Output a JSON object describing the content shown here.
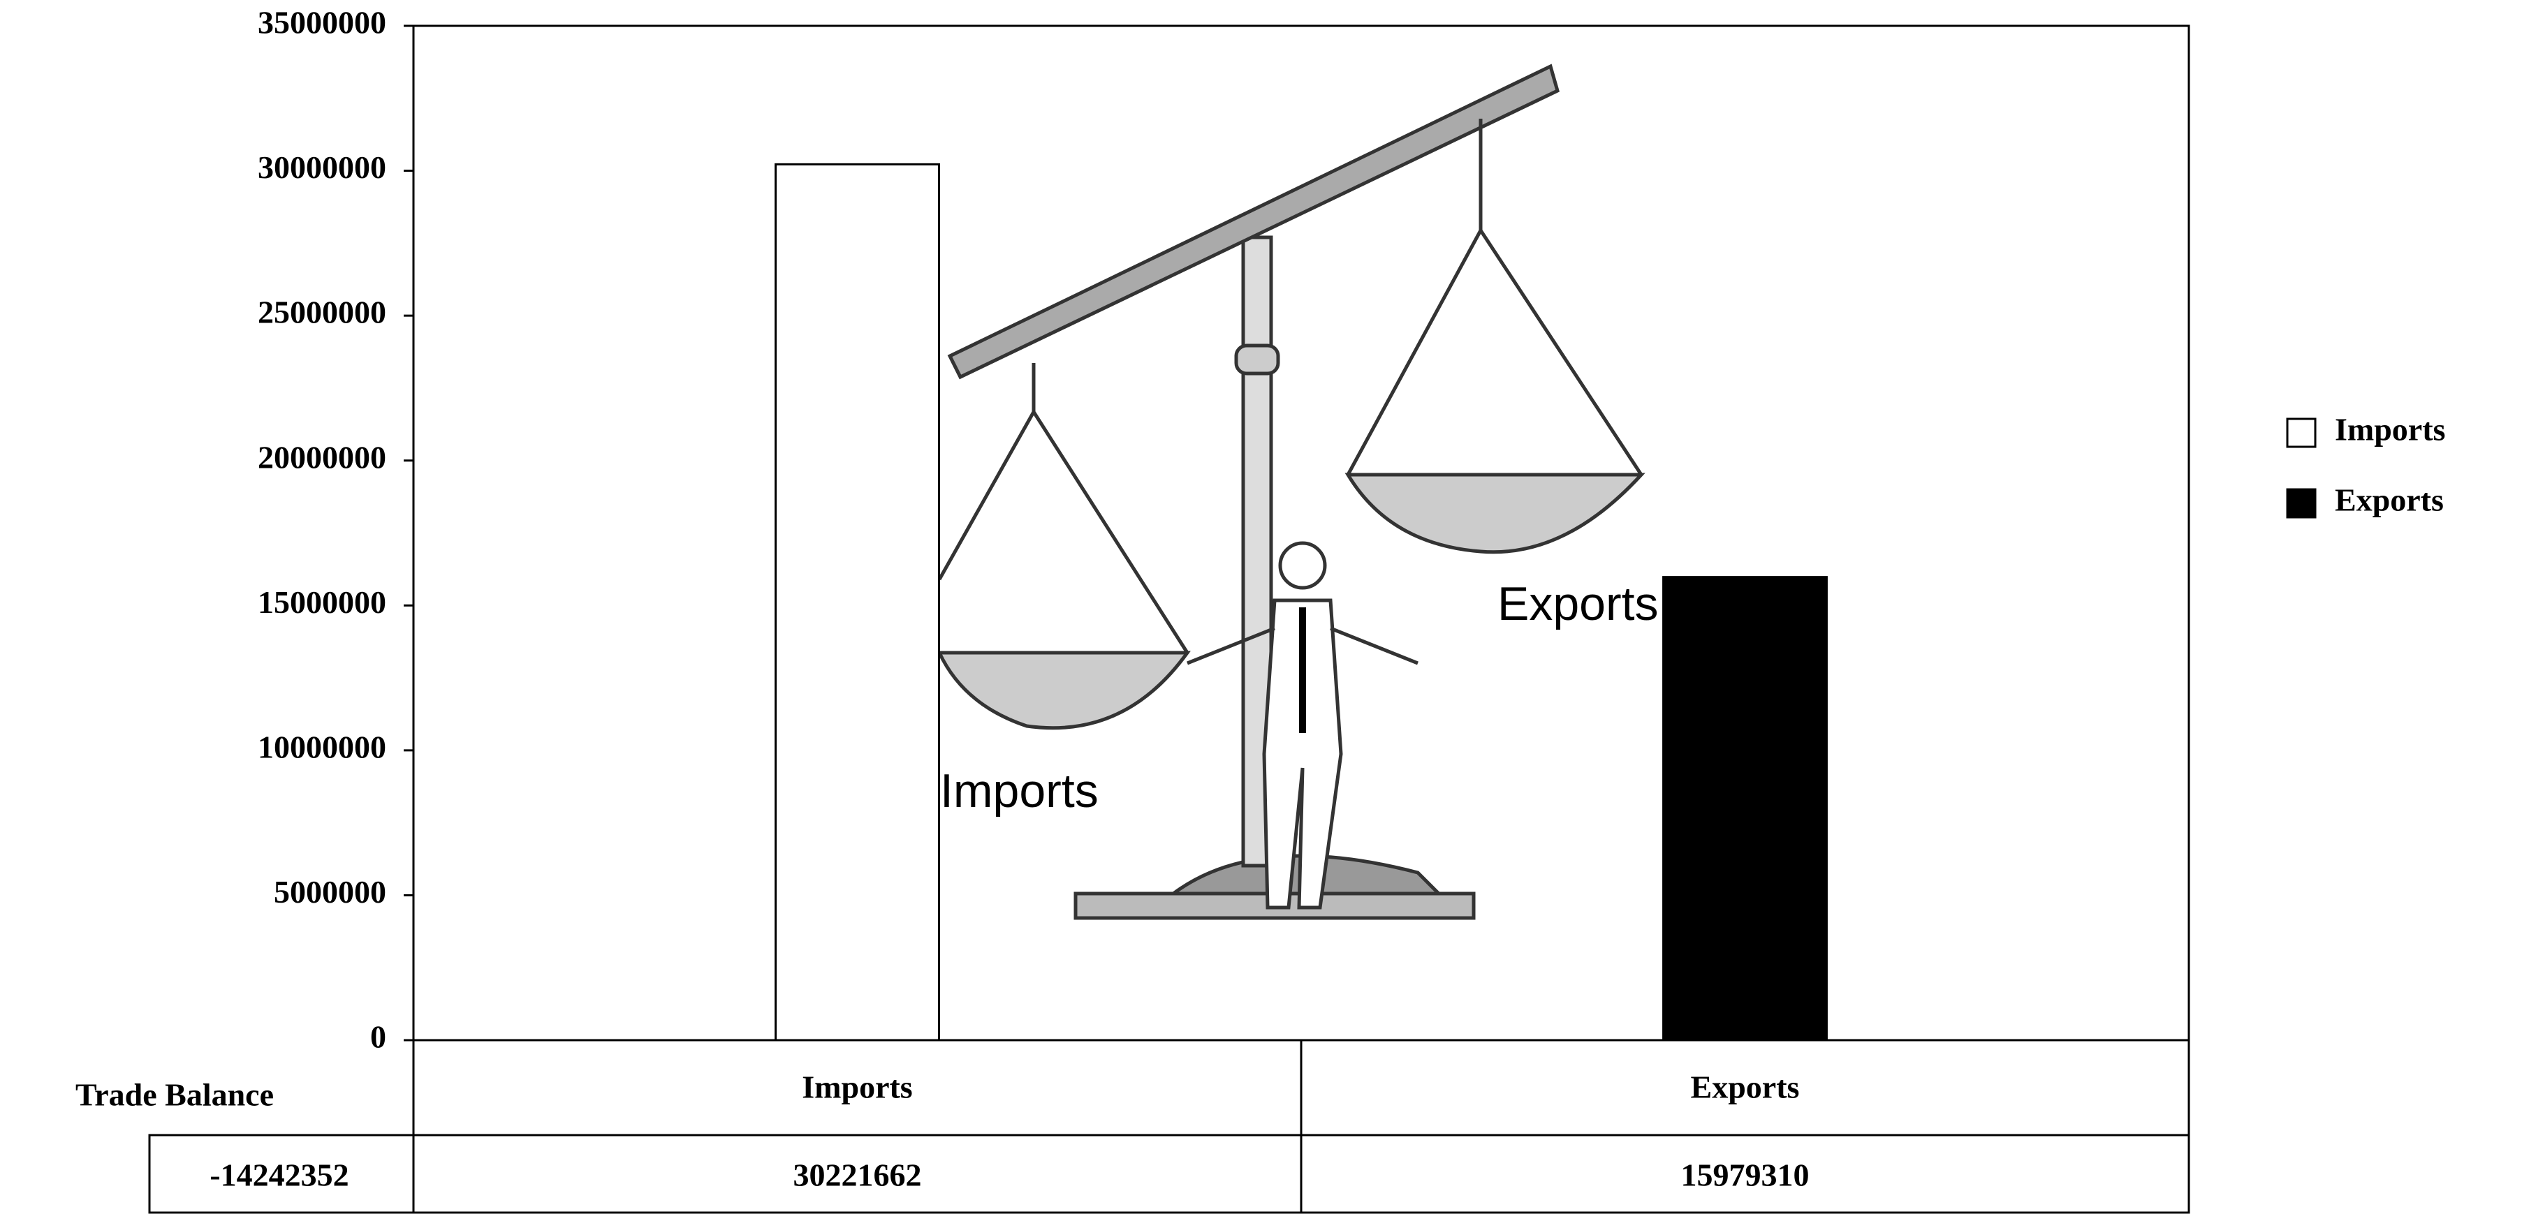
{
  "chart_data": {
    "type": "bar",
    "categories": [
      "Imports",
      "Exports"
    ],
    "series": [
      {
        "name": "Imports",
        "color": "#ffffff",
        "values": [
          30221662,
          null
        ]
      },
      {
        "name": "Exports",
        "color": "#000000",
        "values": [
          null,
          15979310
        ]
      }
    ],
    "ylim": [
      0,
      35000000
    ],
    "yticks": [
      0,
      5000000,
      10000000,
      15000000,
      20000000,
      25000000,
      30000000,
      35000000
    ],
    "grid": false,
    "legend": "right",
    "trade_balance_label": "Trade Balance",
    "trade_balance": -14242352,
    "annotations": [
      "Exports",
      "Imports"
    ]
  }
}
